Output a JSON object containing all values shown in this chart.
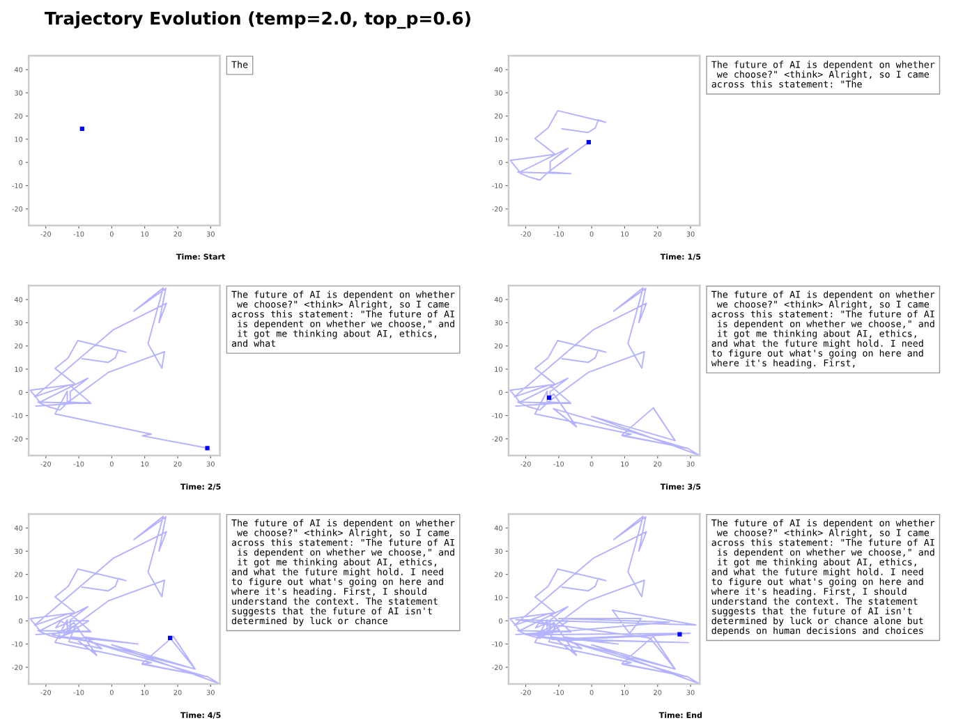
{
  "chart_data": [
    {
      "type": "line",
      "title": "Trajectory Evolution (temp=2.0, top_p=0.6)",
      "xlabel": "Time: Start",
      "xlim": [
        -25.2,
        32.8
      ],
      "ylim": [
        -27.2,
        46
      ],
      "xticks": [
        -20,
        -10,
        0,
        10,
        20,
        30
      ],
      "yticks": [
        -20,
        -10,
        0,
        10,
        20,
        30,
        40
      ],
      "grid": false,
      "legend": false,
      "annotations": [
        "The"
      ],
      "series": [
        {
          "type": "scatter",
          "color": "#0000ff",
          "marker": "square",
          "x": [
            -9.0
          ],
          "values": [
            14.5
          ]
        }
      ]
    },
    {
      "type": "line",
      "xlabel": "Time: 1/5",
      "xlim": [
        -25.2,
        32.8
      ],
      "ylim": [
        -27.2,
        46
      ],
      "xticks": [
        -20,
        -10,
        0,
        10,
        20,
        30
      ],
      "yticks": [
        -20,
        -10,
        0,
        10,
        20,
        30,
        40
      ],
      "grid": false,
      "legend": false,
      "annotations": [
        "The future of AI is dependent on whether\n we choose?\" <think> Alright, so I came\nacross this statement: \"The"
      ],
      "series": [
        {
          "type": "line",
          "color": "#b3b3ff",
          "x": [
            -9.0,
            -1.1,
            1.1,
            2.0,
            4.3,
            -10.3,
            -13.2,
            -17.2,
            -11.1,
            -24.7,
            -21.8,
            -7.2,
            -12.6,
            -12.6,
            -6.3,
            -22.4,
            -19.2,
            -15.7,
            -13.2,
            -0.9
          ],
          "values": [
            14.5,
            12.9,
            14.9,
            18.3,
            17.3,
            22.3,
            14.9,
            10.3,
            3.5,
            0.9,
            -4.2,
            6.1,
            0.3,
            -4.2,
            -4.8,
            -4.2,
            -6.2,
            -7.6,
            -4.2,
            8.7
          ]
        },
        {
          "type": "scatter",
          "color": "#0000ff",
          "marker": "square",
          "x": [
            -0.9
          ],
          "values": [
            8.7
          ]
        }
      ]
    },
    {
      "type": "line",
      "xlabel": "Time: 2/5",
      "xlim": [
        -25.2,
        32.8
      ],
      "ylim": [
        -27.2,
        46
      ],
      "xticks": [
        -20,
        -10,
        0,
        10,
        20,
        30
      ],
      "yticks": [
        -20,
        -10,
        0,
        10,
        20,
        30,
        40
      ],
      "grid": false,
      "legend": false,
      "annotations": [
        "The future of AI is dependent on whether\n we choose?\" <think> Alright, so I came\nacross this statement: \"The future of AI\n is dependent on whether we choose,\" and\n it got me thinking about AI, ethics,\nand what"
      ],
      "series": [
        {
          "type": "line",
          "color": "#b3b3ff",
          "x": [
            -9.0,
            -1.1,
            1.1,
            2.0,
            4.3,
            -10.3,
            -13.2,
            -17.2,
            -11.1,
            -24.7,
            -21.8,
            -7.2,
            -12.6,
            -12.6,
            -6.3,
            -22.4,
            -19.2,
            -15.7,
            -13.2,
            -0.9,
            16,
            15.2,
            11,
            15.6,
            6.7,
            16.4,
            14.3,
            16.6,
            0.4,
            -23.4,
            -12.8,
            -6.6,
            -23,
            -13.5,
            -13.5,
            -17.2,
            12,
            9.2,
            29
          ],
          "values": [
            14.5,
            12.9,
            14.9,
            18.3,
            17.3,
            22.3,
            14.9,
            10.3,
            3.5,
            0.9,
            -4.2,
            6.1,
            0.3,
            -4.2,
            -4.8,
            -4.2,
            -6.2,
            -7.6,
            -4.2,
            8.7,
            17.5,
            10.4,
            21,
            45,
            35,
            44.8,
            30,
            38.4,
            26.9,
            -1.9,
            3.2,
            -4.3,
            -5.9,
            -5,
            0.5,
            -9.3,
            -18,
            -18.7,
            -24
          ]
        },
        {
          "type": "scatter",
          "color": "#0000ff",
          "marker": "square",
          "x": [
            29
          ],
          "values": [
            -24
          ]
        }
      ]
    },
    {
      "type": "line",
      "xlabel": "Time: 3/5",
      "xlim": [
        -25.2,
        32.8
      ],
      "ylim": [
        -27.2,
        46
      ],
      "xticks": [
        -20,
        -10,
        0,
        10,
        20,
        30
      ],
      "yticks": [
        -20,
        -10,
        0,
        10,
        20,
        30,
        40
      ],
      "grid": false,
      "legend": false,
      "annotations": [
        "The future of AI is dependent on whether\n we choose?\" <think> Alright, so I came\nacross this statement: \"The future of AI\n is dependent on whether we choose,\" and\n it got me thinking about AI, ethics,\nand what the future might hold. I need\nto figure out what's going on here and\nwhere it's heading. First,"
      ],
      "series": [
        {
          "type": "line",
          "color": "#b3b3ff",
          "x": [
            -9.0,
            -1.1,
            1.1,
            2.0,
            4.3,
            -10.3,
            -13.2,
            -17.2,
            -11.1,
            -24.7,
            -21.8,
            -7.2,
            -12.6,
            -12.6,
            -6.3,
            -22.4,
            -19.2,
            -15.7,
            -13.2,
            -0.9,
            16,
            15.2,
            11,
            15.6,
            6.7,
            16.4,
            14.3,
            16.6,
            0.4,
            -23.4,
            -12.8,
            -6.6,
            -23,
            -13.5,
            -13.5,
            -17.2,
            12,
            9.2,
            29,
            32.5,
            0,
            25.3,
            18.7,
            9.2,
            28.5,
            -11.6,
            -4.6,
            -11.5,
            -12.9
          ],
          "values": [
            14.5,
            12.9,
            14.9,
            18.3,
            17.3,
            22.3,
            14.9,
            10.3,
            3.5,
            0.9,
            -4.2,
            6.1,
            0.3,
            -4.2,
            -4.8,
            -4.2,
            -6.2,
            -7.6,
            -4.2,
            8.7,
            17.5,
            10.4,
            21,
            45,
            35,
            44.8,
            30,
            38.4,
            26.9,
            -1.9,
            3.2,
            -4.3,
            -5.9,
            -5,
            0.5,
            -9.3,
            -18,
            -18.7,
            -24,
            -27,
            -10.3,
            -20.8,
            -6.7,
            -18.4,
            -24,
            -7,
            -14.8,
            -0.7,
            -2.3
          ]
        },
        {
          "type": "scatter",
          "color": "#0000ff",
          "marker": "square",
          "x": [
            -12.9
          ],
          "values": [
            -2.3
          ]
        }
      ]
    },
    {
      "type": "line",
      "xlabel": "Time: 4/5",
      "xlim": [
        -25.2,
        32.8
      ],
      "ylim": [
        -27.2,
        46
      ],
      "xticks": [
        -20,
        -10,
        0,
        10,
        20,
        30
      ],
      "yticks": [
        -20,
        -10,
        0,
        10,
        20,
        30,
        40
      ],
      "grid": false,
      "legend": false,
      "annotations": [
        "The future of AI is dependent on whether\n we choose?\" <think> Alright, so I came\nacross this statement: \"The future of AI\n is dependent on whether we choose,\" and\n it got me thinking about AI, ethics,\nand what the future might hold. I need\nto figure out what's going on here and\nwhere it's heading. First, I should\nunderstand the context. The statement\nsuggests that the future of AI isn't\ndetermined by luck or chance"
      ],
      "series": [
        {
          "type": "line",
          "color": "#b3b3ff",
          "x": [
            -9.0,
            -1.1,
            1.1,
            2.0,
            4.3,
            -10.3,
            -13.2,
            -17.2,
            -11.1,
            -24.7,
            -21.8,
            -7.2,
            -12.6,
            -12.6,
            -6.3,
            -22.4,
            -19.2,
            -15.7,
            -13.2,
            -0.9,
            16,
            15.2,
            11,
            15.6,
            6.7,
            16.4,
            14.3,
            16.6,
            0.4,
            -23.4,
            -12.8,
            -6.6,
            -23,
            -13.5,
            -13.5,
            -17.2,
            12,
            9.2,
            29,
            32.5,
            0,
            25.3,
            18.7,
            9.2,
            28.5,
            -11.6,
            -4.6,
            -11.5,
            -12.9,
            -15.5,
            -17,
            -12,
            -7,
            -14,
            -10,
            -16,
            -6,
            -18,
            -11,
            -13,
            -3,
            -8,
            8,
            -12,
            25.3,
            17.7
          ],
          "values": [
            14.5,
            12.9,
            14.9,
            18.3,
            17.3,
            22.3,
            14.9,
            10.3,
            3.5,
            0.9,
            -4.2,
            6.1,
            0.3,
            -4.2,
            -4.8,
            -4.2,
            -6.2,
            -7.6,
            -4.2,
            8.7,
            17.5,
            10.4,
            21,
            45,
            35,
            44.8,
            30,
            38.4,
            26.9,
            -1.9,
            3.2,
            -4.3,
            -5.9,
            -5,
            0.5,
            -9.3,
            -18,
            -18.7,
            -24,
            -27,
            -10.3,
            -20.8,
            -6.7,
            -18.4,
            -24,
            -7,
            -14.8,
            -0.7,
            -2.3,
            0,
            -3,
            0,
            0,
            -6,
            -4,
            -7,
            -9,
            -6,
            -2,
            -9,
            -12,
            -7,
            -10,
            -7,
            -20.8,
            -7.4
          ]
        },
        {
          "type": "scatter",
          "color": "#0000ff",
          "marker": "square",
          "x": [
            17.7
          ],
          "values": [
            -7.4
          ]
        }
      ]
    },
    {
      "type": "line",
      "xlabel": "Time: End",
      "xlim": [
        -25.2,
        32.8
      ],
      "ylim": [
        -27.2,
        46
      ],
      "xticks": [
        -20,
        -10,
        0,
        10,
        20,
        30
      ],
      "yticks": [
        -20,
        -10,
        0,
        10,
        20,
        30,
        40
      ],
      "grid": false,
      "legend": false,
      "annotations": [
        "The future of AI is dependent on whether\n we choose?\" <think> Alright, so I came\nacross this statement: \"The future of AI\n is dependent on whether we choose,\" and\n it got me thinking about AI, ethics,\nand what the future might hold. I need\nto figure out what's going on here and\nwhere it's heading. First, I should\nunderstand the context. The statement\nsuggests that the future of AI isn't\ndetermined by luck or chance alone but\ndepends on human decisions and choices"
      ],
      "series": [
        {
          "type": "line",
          "color": "#b3b3ff",
          "x": [
            -9.0,
            -1.1,
            1.1,
            2.0,
            4.3,
            -10.3,
            -13.2,
            -17.2,
            -11.1,
            -24.7,
            -21.8,
            -7.2,
            -12.6,
            -12.6,
            -6.3,
            -22.4,
            -19.2,
            -15.7,
            -13.2,
            -0.9,
            16,
            15.2,
            11,
            15.6,
            6.7,
            16.4,
            14.3,
            16.6,
            0.4,
            -23.4,
            -12.8,
            -6.6,
            -23,
            -13.5,
            -13.5,
            -17.2,
            12,
            9.2,
            29,
            32.5,
            0,
            25.3,
            18.7,
            9.2,
            28.5,
            -11.6,
            -4.6,
            -11.5,
            -12.9,
            -15.5,
            -17,
            -12,
            -7,
            -14,
            -10,
            -16,
            -6,
            -18,
            -11,
            -13,
            -3,
            -8,
            8,
            -12,
            25.3,
            17.7,
            -23,
            31.6,
            6.3,
            11.5,
            15,
            -10,
            23.6,
            -20,
            29.9,
            -12,
            29.3,
            -5,
            26.7
          ],
          "values": [
            14.5,
            12.9,
            14.9,
            18.3,
            17.3,
            22.3,
            14.9,
            10.3,
            3.5,
            0.9,
            -4.2,
            6.1,
            0.3,
            -4.2,
            -4.8,
            -4.2,
            -6.2,
            -7.6,
            -4.2,
            8.7,
            17.5,
            10.4,
            21,
            45,
            35,
            44.8,
            30,
            38.4,
            26.9,
            -1.9,
            3.2,
            -4.3,
            -5.9,
            -5,
            0.5,
            -9.3,
            -18,
            -18.7,
            -24,
            -27,
            -10.3,
            -20.8,
            -6.7,
            -18.4,
            -24,
            -7,
            -14.8,
            -0.7,
            -2.3,
            0,
            -3,
            0,
            0,
            -6,
            -4,
            -7,
            -9,
            -6,
            -2,
            -9,
            -12,
            -7,
            -10,
            -7,
            -20.8,
            -7.4,
            0.5,
            -1.8,
            4.6,
            -5.4,
            1,
            1,
            -0.6,
            -6,
            -5.4,
            -8,
            -9.4,
            -8,
            -5.8
          ]
        },
        {
          "type": "scatter",
          "color": "#0000ff",
          "marker": "square",
          "x": [
            26.7
          ],
          "values": [
            -5.8
          ]
        }
      ]
    }
  ]
}
